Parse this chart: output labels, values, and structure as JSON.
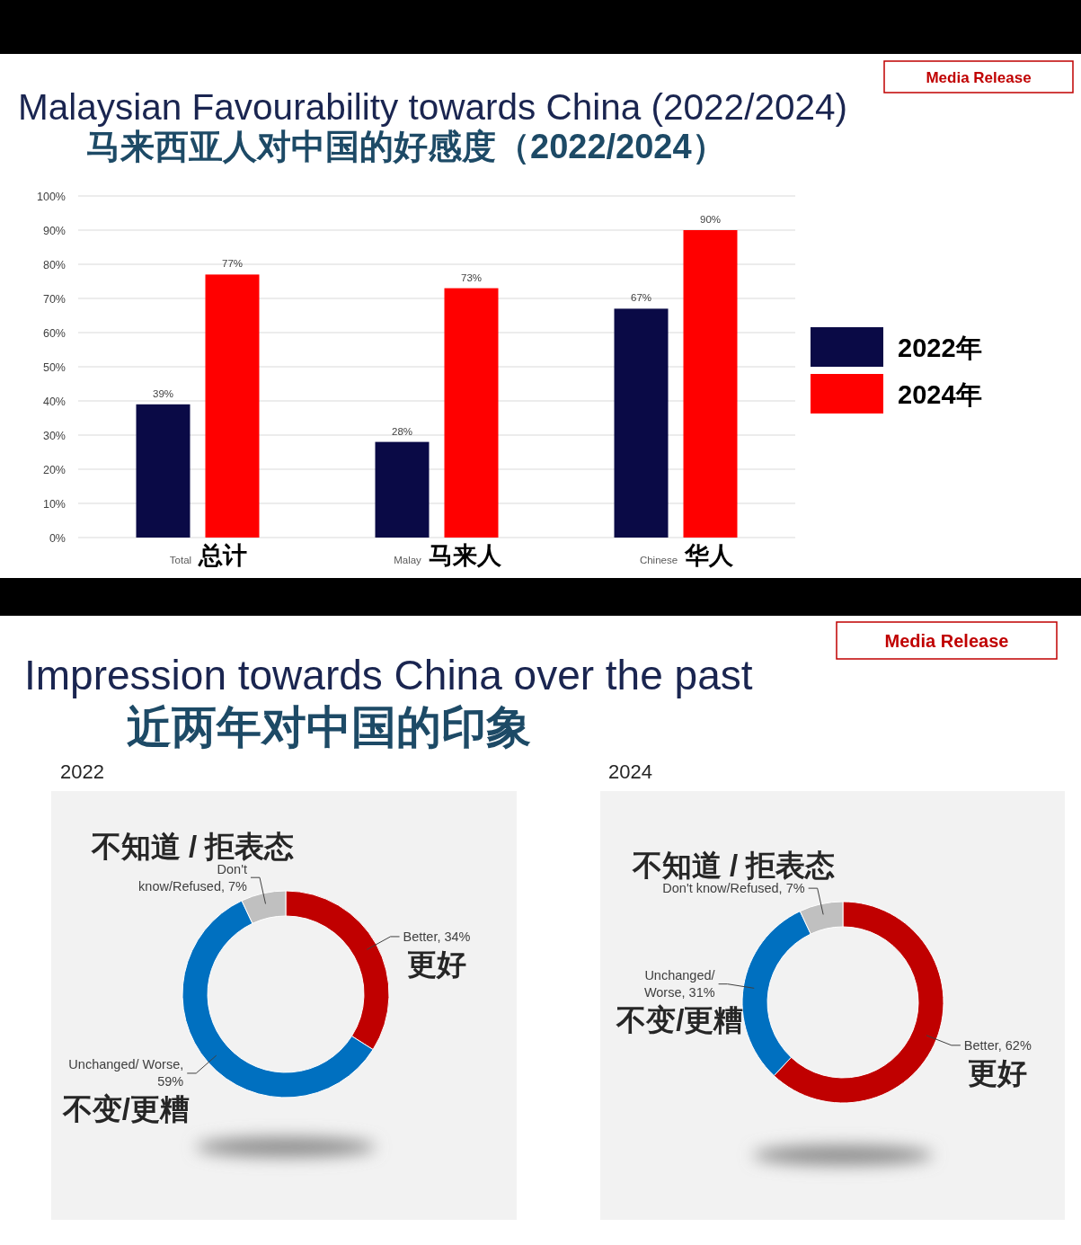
{
  "chart_data": [
    {
      "type": "bar",
      "title": "Malaysian Favourability towards China (2022/2024)",
      "subtitle": "马来西亚人对中国的好感度（2022/2024）",
      "annotations": [
        "Media Release"
      ],
      "categories": [
        "Total 总计",
        "Malay 马来人",
        "Chinese 华人"
      ],
      "series": [
        {
          "name": "2022年",
          "color": "#0a0a46",
          "values": [
            39,
            28,
            67
          ],
          "value_labels": [
            "39%",
            "28%",
            "67%"
          ]
        },
        {
          "name": "2024年",
          "color": "#ff0000",
          "values": [
            77,
            73,
            90
          ],
          "value_labels": [
            "77%",
            "73%",
            "90%"
          ]
        }
      ],
      "ylim": [
        0,
        100
      ],
      "yticks": [
        {
          "value": 0,
          "label": "0%"
        },
        {
          "value": 10,
          "label": "10%"
        },
        {
          "value": 20,
          "label": "20%"
        },
        {
          "value": 30,
          "label": "30%"
        },
        {
          "value": 40,
          "label": "40%"
        },
        {
          "value": 50,
          "label": "50%"
        },
        {
          "value": 60,
          "label": "60%"
        },
        {
          "value": 70,
          "label": "70%"
        },
        {
          "value": 80,
          "label": "80%"
        },
        {
          "value": 90,
          "label": "90%"
        },
        {
          "value": 100,
          "label": "100%"
        }
      ],
      "grid": "y",
      "legend": "right"
    },
    {
      "type": "other",
      "title": "Impression towards China over the past",
      "subtitle": "近两年对中国的印象",
      "annotations": [
        "Media Release"
      ]
    },
    {
      "type": "donut",
      "title": "2022",
      "categories": [
        "更好",
        "不变/更糟",
        "不知道 / 拒表态"
      ],
      "values": [
        34,
        59,
        7
      ],
      "colors": [
        "#c00000",
        "#0070c0",
        "#c0c0c0"
      ],
      "value_labels": [
        "Better, 34%",
        "Unchanged/ Worse,\n59%",
        "Don't\nknow/Refused, 7%"
      ]
    },
    {
      "type": "donut",
      "title": "2024",
      "categories": [
        "更好",
        "不变/更糟",
        "不知道 / 拒表态"
      ],
      "values": [
        62,
        31,
        7
      ],
      "colors": [
        "#c00000",
        "#0070c0",
        "#c0c0c0"
      ],
      "value_labels": [
        "Better, 62%",
        "Unchanged/\nWorse, 31%",
        "Don't know/Refused, 7%"
      ]
    }
  ]
}
